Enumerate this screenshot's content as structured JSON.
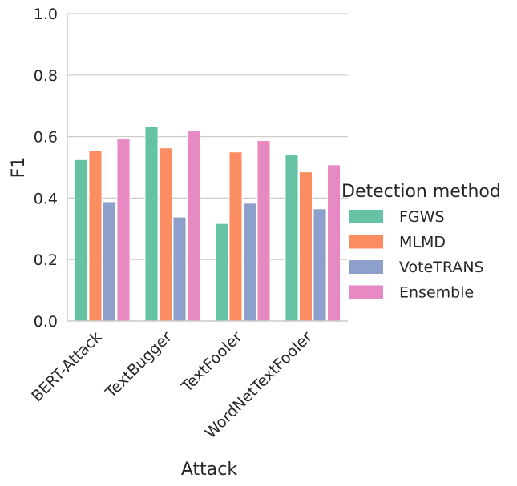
{
  "chart_data": {
    "type": "bar",
    "xlabel": "Attack",
    "ylabel": "F1",
    "ylim": [
      0,
      1.0
    ],
    "yticks": [
      "0.0",
      "0.2",
      "0.4",
      "0.6",
      "0.8",
      "1.0"
    ],
    "grid": "horizontal",
    "categories": [
      "BERT-Attack",
      "TextBugger",
      "TextFooler",
      "WordNetTextFooler"
    ],
    "series": [
      {
        "name": "FGWS",
        "color": "#66c2a5",
        "values": [
          0.525,
          0.633,
          0.317,
          0.54
        ]
      },
      {
        "name": "MLMD",
        "color": "#fc8d62",
        "values": [
          0.555,
          0.563,
          0.55,
          0.485
        ]
      },
      {
        "name": "VoteTRANS",
        "color": "#8da0cb",
        "values": [
          0.388,
          0.338,
          0.383,
          0.365
        ]
      },
      {
        "name": "Ensemble",
        "color": "#e78ac3",
        "values": [
          0.592,
          0.618,
          0.587,
          0.508
        ]
      }
    ],
    "legend": {
      "title": "Detection method",
      "placement": "right"
    }
  }
}
